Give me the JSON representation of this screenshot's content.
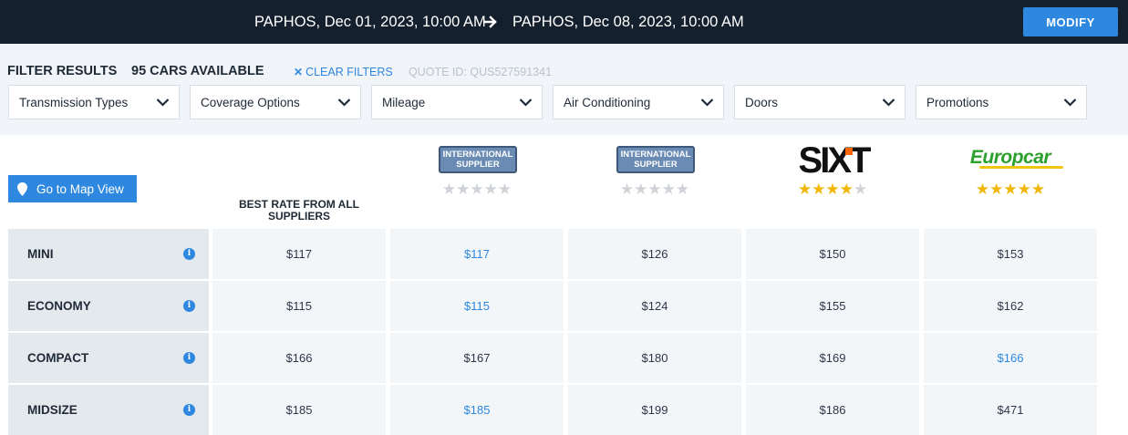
{
  "header": {
    "pickup": "PAPHOS, Dec 01, 2023, 10:00 AM",
    "dropoff": "PAPHOS, Dec 08, 2023, 10:00 AM",
    "arrow_icon": "arrow-right-icon",
    "modify_label": "MODIFY"
  },
  "filters": {
    "heading": "FILTER RESULTS",
    "cars_available": "95 CARS AVAILABLE",
    "clear_label": "CLEAR FILTERS",
    "quote_id": "QUOTE ID: QUS527591341",
    "dropdowns": [
      {
        "label": "Transmission Types"
      },
      {
        "label": "Coverage Options"
      },
      {
        "label": "Mileage"
      },
      {
        "label": "Air Conditioning"
      },
      {
        "label": "Doors"
      },
      {
        "label": "Promotions"
      }
    ]
  },
  "map_button": {
    "label": "Go to Map View",
    "icon": "map-pin-icon"
  },
  "best_rate_label": "BEST RATE FROM ALL SUPPLIERS",
  "suppliers": [
    {
      "type": "badge",
      "badge": "INTERNATIONAL SUPPLIER",
      "rating": 0
    },
    {
      "type": "badge",
      "badge": "INTERNATIONAL SUPPLIER",
      "rating": 0
    },
    {
      "type": "logo",
      "name": "SIXT",
      "rating": 4
    },
    {
      "type": "logo",
      "name": "Europcar",
      "rating": 5
    }
  ],
  "colors": {
    "accent": "#2e88e0",
    "topbar": "#14202d",
    "star": "#f2b705"
  },
  "rows": [
    {
      "class": "MINI",
      "best": "$117",
      "prices": [
        "$117",
        "$126",
        "$150",
        "$153"
      ],
      "highlight": 0
    },
    {
      "class": "ECONOMY",
      "best": "$115",
      "prices": [
        "$115",
        "$124",
        "$155",
        "$162"
      ],
      "highlight": 0
    },
    {
      "class": "COMPACT",
      "best": "$166",
      "prices": [
        "$167",
        "$180",
        "$169",
        "$166"
      ],
      "highlight": 3
    },
    {
      "class": "MIDSIZE",
      "best": "$185",
      "prices": [
        "$185",
        "$199",
        "$186",
        "$471"
      ],
      "highlight": 0
    }
  ]
}
